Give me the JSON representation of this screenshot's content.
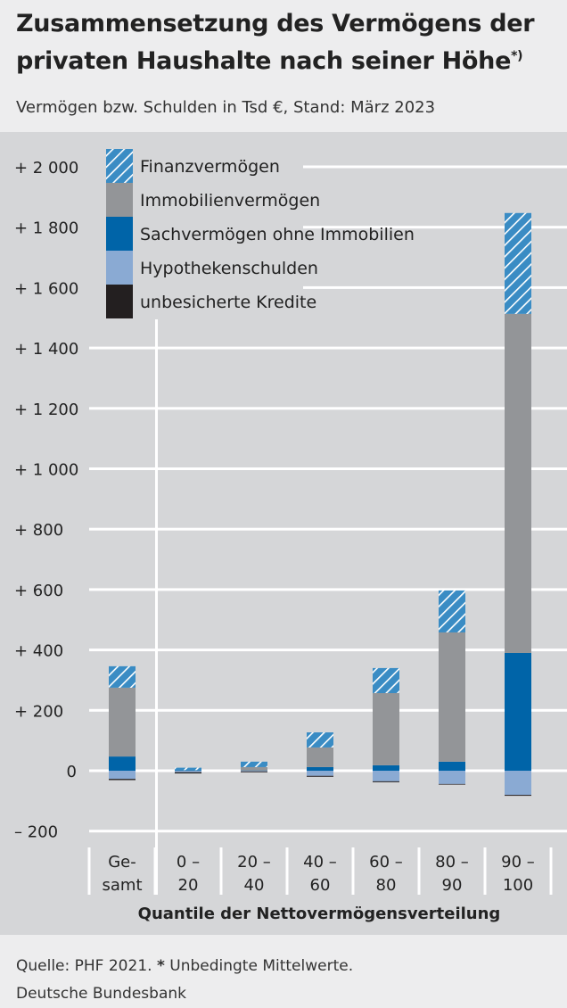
{
  "title": "Zusammensetzung des Vermögens der privaten Haushalte nach seiner Höhe",
  "title_sup": "*)",
  "subtitle": "Vermögen bzw. Schulden in Tsd €, Stand: März 2023",
  "source": "Quelle: PHF 2021.",
  "source_note_star": "*",
  "source_note": " Unbedingte Mittelwerte.",
  "publisher": "Deutsche Bundesbank",
  "chart_data": {
    "type": "bar",
    "stacked": true,
    "xlabel": "Quantile der Nettovermögensverteilung",
    "categories": [
      [
        "Ge-",
        "samt"
      ],
      [
        "0 –",
        "20"
      ],
      [
        "20 –",
        "40"
      ],
      [
        "40 –",
        "60"
      ],
      [
        "60 –",
        "80"
      ],
      [
        "80 –",
        "90"
      ],
      [
        "90 –",
        "100"
      ]
    ],
    "ylim": [
      -200,
      2000
    ],
    "yticks": [
      {
        "v": 2000,
        "t": "+ 2 000"
      },
      {
        "v": 1800,
        "t": "+ 1 800"
      },
      {
        "v": 1600,
        "t": "+ 1 600"
      },
      {
        "v": 1400,
        "t": "+ 1 400"
      },
      {
        "v": 1200,
        "t": "+ 1 200"
      },
      {
        "v": 1000,
        "t": "+ 1 000"
      },
      {
        "v": 800,
        "t": "+   800"
      },
      {
        "v": 600,
        "t": "+   600"
      },
      {
        "v": 400,
        "t": "+   400"
      },
      {
        "v": 200,
        "t": "+   200"
      },
      {
        "v": 0,
        "t": "0"
      },
      {
        "v": -200,
        "t": "–   200"
      }
    ],
    "grid": true,
    "legend_placement": "top-left",
    "series": [
      {
        "name": "Sachvermögen ohne Immobilien",
        "color": "#0064a8",
        "values": [
          47,
          2,
          1,
          12,
          18,
          30,
          390
        ]
      },
      {
        "name": "Immobilienvermögen",
        "color": "#939598",
        "values": [
          228,
          0,
          11,
          65,
          239,
          428,
          1123
        ]
      },
      {
        "name": "Finanzvermögen",
        "color": "#3a8cc4",
        "hatched": true,
        "values": [
          71,
          8,
          18,
          50,
          83,
          139,
          334
        ]
      },
      {
        "name": "Hypothekenschulden",
        "color": "#8aaad3",
        "values": [
          -27,
          -5,
          -2,
          -17,
          -35,
          -44,
          -80
        ]
      },
      {
        "name": "unbesicherte Kredite",
        "color": "#231f20",
        "values": [
          -4,
          -4,
          -3,
          -3,
          -3,
          -2,
          -3
        ]
      }
    ],
    "legend_order": [
      "Finanzvermögen",
      "Immobilienvermögen",
      "Sachvermögen ohne Immobilien",
      "Hypothekenschulden",
      "unbesicherte Kredite"
    ]
  }
}
